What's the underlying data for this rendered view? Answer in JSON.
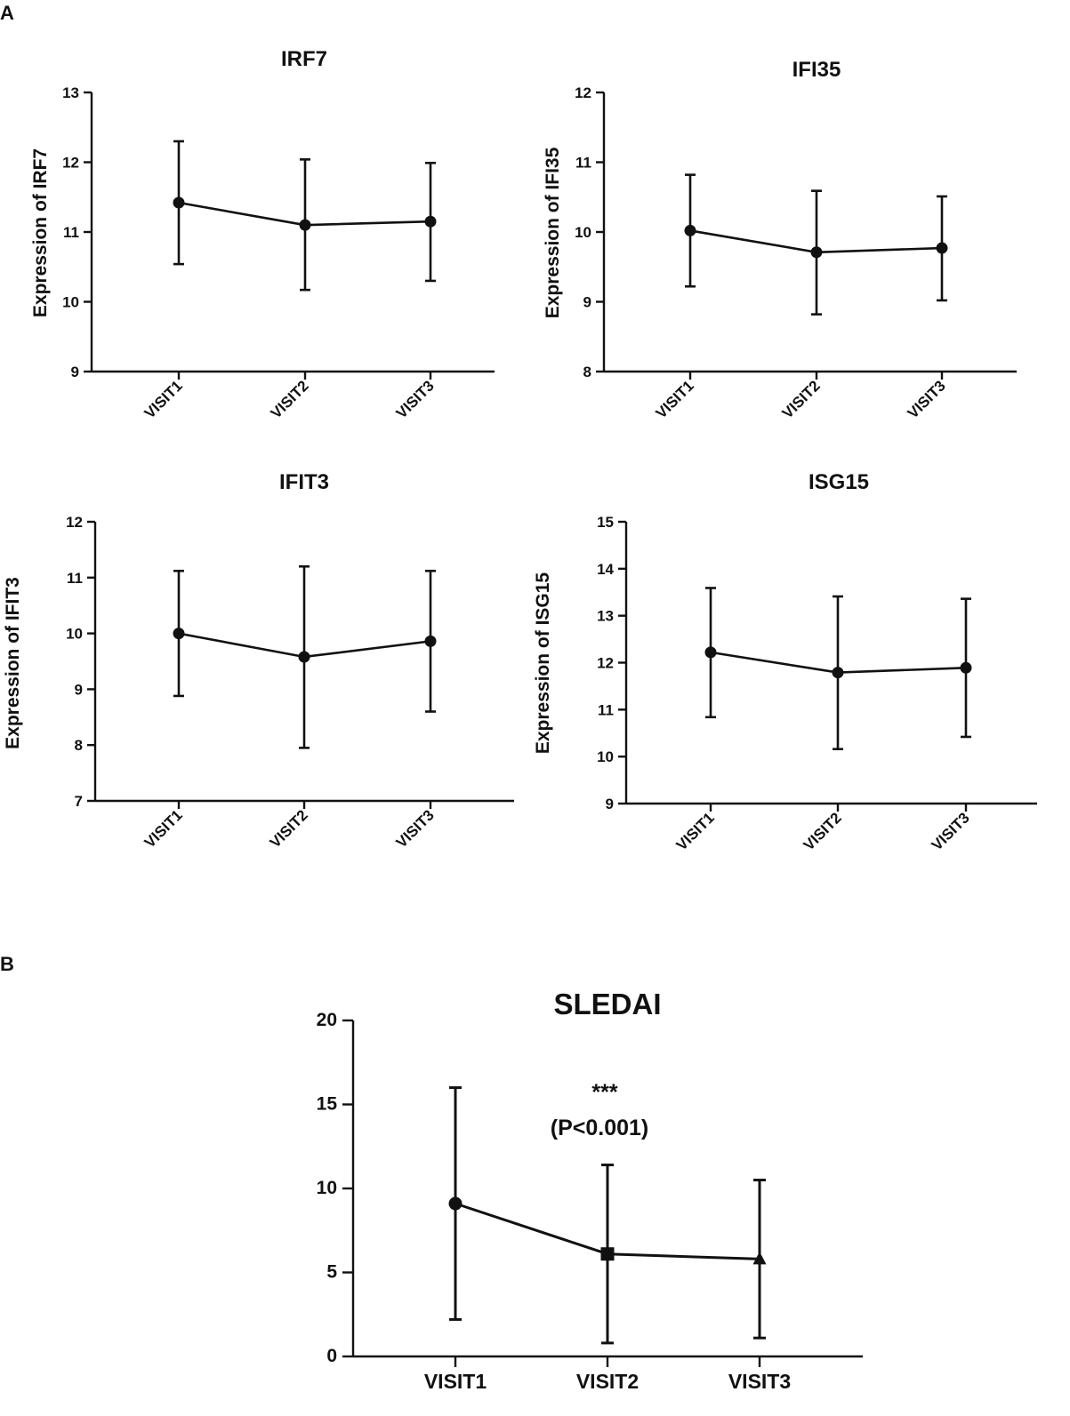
{
  "panel_labels": {
    "a": "A",
    "b": "B"
  },
  "colors": {
    "ink": "#111111",
    "background": "#ffffff"
  },
  "chart_data": [
    {
      "type": "line",
      "title": "IRF7",
      "xlabel": "",
      "ylabel": "Expression of IRF7",
      "categories": [
        "VISIT1",
        "VISIT2",
        "VISIT3"
      ],
      "ylim": [
        9,
        13
      ],
      "yticks": [
        9,
        10,
        11,
        12,
        13
      ],
      "marker": "circle",
      "series": [
        {
          "name": "IRF7",
          "values": [
            11.42,
            11.1,
            11.15
          ],
          "err_low": [
            10.54,
            10.17,
            10.3
          ],
          "err_high": [
            12.3,
            12.04,
            11.99
          ]
        }
      ]
    },
    {
      "type": "line",
      "title": "IFI35",
      "xlabel": "",
      "ylabel": "Expression of IFI35",
      "categories": [
        "VISIT1",
        "VISIT2",
        "VISIT3"
      ],
      "ylim": [
        8,
        12
      ],
      "yticks": [
        8,
        9,
        10,
        11,
        12
      ],
      "marker": "circle",
      "series": [
        {
          "name": "IFI35",
          "values": [
            10.02,
            9.71,
            9.77
          ],
          "err_low": [
            9.22,
            8.82,
            9.02
          ],
          "err_high": [
            10.82,
            10.59,
            10.51
          ]
        }
      ]
    },
    {
      "type": "line",
      "title": "IFIT3",
      "xlabel": "",
      "ylabel": "Expression of IFIT3",
      "categories": [
        "VISIT1",
        "VISIT2",
        "VISIT3"
      ],
      "ylim": [
        7,
        12
      ],
      "yticks": [
        7,
        8,
        9,
        10,
        11,
        12
      ],
      "marker": "circle",
      "series": [
        {
          "name": "IFIT3",
          "values": [
            10.0,
            9.58,
            9.86
          ],
          "err_low": [
            8.88,
            7.95,
            8.6
          ],
          "err_high": [
            11.12,
            11.2,
            11.12
          ]
        }
      ]
    },
    {
      "type": "line",
      "title": "ISG15",
      "xlabel": "",
      "ylabel": "Expression of ISG15",
      "categories": [
        "VISIT1",
        "VISIT2",
        "VISIT3"
      ],
      "ylim": [
        9,
        15
      ],
      "yticks": [
        9,
        10,
        11,
        12,
        13,
        14,
        15
      ],
      "marker": "circle",
      "series": [
        {
          "name": "ISG15",
          "values": [
            12.22,
            11.79,
            11.89
          ],
          "err_low": [
            10.84,
            10.16,
            10.42
          ],
          "err_high": [
            13.59,
            13.41,
            13.36
          ]
        }
      ]
    },
    {
      "type": "line",
      "title": "SLEDAI",
      "xlabel": "",
      "ylabel": "",
      "categories": [
        "VISIT1",
        "VISIT2",
        "VISIT3"
      ],
      "ylim": [
        0,
        20
      ],
      "yticks": [
        0,
        5,
        10,
        15,
        20
      ],
      "markers": [
        "circle",
        "square",
        "triangle"
      ],
      "series": [
        {
          "name": "SLEDAI",
          "values": [
            9.1,
            6.1,
            5.8
          ],
          "err_low": [
            2.2,
            0.8,
            1.1
          ],
          "err_high": [
            16.0,
            11.4,
            10.5
          ]
        }
      ],
      "annotation": {
        "stars": "***",
        "pvalue": "(P<0.001)"
      }
    }
  ]
}
